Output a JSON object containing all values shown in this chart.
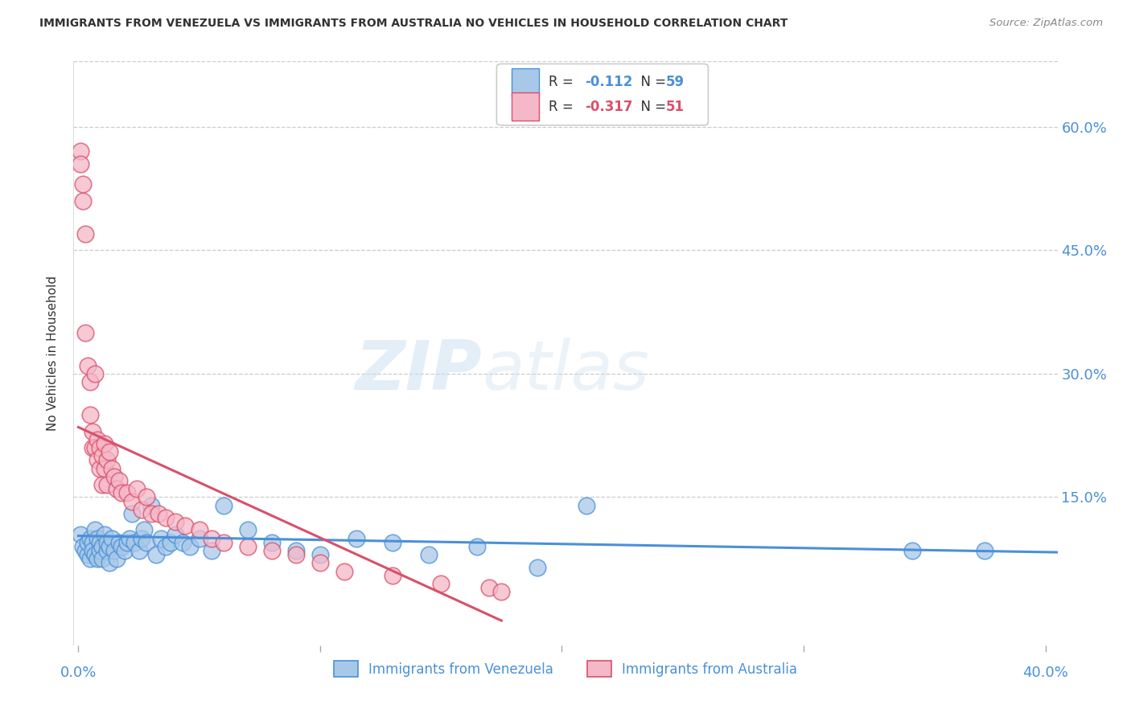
{
  "title": "IMMIGRANTS FROM VENEZUELA VS IMMIGRANTS FROM AUSTRALIA NO VEHICLES IN HOUSEHOLD CORRELATION CHART",
  "source": "Source: ZipAtlas.com",
  "ylabel": "No Vehicles in Household",
  "yticks_right": [
    "60.0%",
    "45.0%",
    "30.0%",
    "15.0%"
  ],
  "ytick_positions": [
    0.6,
    0.45,
    0.3,
    0.15
  ],
  "xlim": [
    -0.002,
    0.405
  ],
  "ylim": [
    -0.03,
    0.68
  ],
  "watermark_zip": "ZIP",
  "watermark_atlas": "atlas",
  "legend1_r": "-0.112",
  "legend1_n": "59",
  "legend2_r": "-0.317",
  "legend2_n": "51",
  "legend1_color": "#a8c8e8",
  "legend2_color": "#f5b8c8",
  "line1_color": "#4a90d9",
  "line2_color": "#d9506a",
  "scatter1_color": "#a8c8e8",
  "scatter2_color": "#f5b8c8",
  "bottom_legend1": "Immigrants from Venezuela",
  "bottom_legend2": "Immigrants from Australia",
  "venezuela_x": [
    0.001,
    0.002,
    0.003,
    0.004,
    0.004,
    0.005,
    0.005,
    0.006,
    0.006,
    0.007,
    0.007,
    0.008,
    0.008,
    0.009,
    0.009,
    0.01,
    0.01,
    0.011,
    0.012,
    0.012,
    0.013,
    0.013,
    0.014,
    0.015,
    0.016,
    0.017,
    0.018,
    0.019,
    0.02,
    0.021,
    0.022,
    0.023,
    0.025,
    0.026,
    0.027,
    0.028,
    0.03,
    0.032,
    0.034,
    0.036,
    0.038,
    0.04,
    0.043,
    0.046,
    0.05,
    0.055,
    0.06,
    0.07,
    0.08,
    0.09,
    0.1,
    0.115,
    0.13,
    0.145,
    0.165,
    0.19,
    0.21,
    0.345,
    0.375
  ],
  "venezuela_y": [
    0.105,
    0.09,
    0.085,
    0.08,
    0.095,
    0.075,
    0.1,
    0.095,
    0.085,
    0.11,
    0.08,
    0.1,
    0.075,
    0.095,
    0.085,
    0.09,
    0.075,
    0.105,
    0.085,
    0.095,
    0.07,
    0.09,
    0.1,
    0.085,
    0.075,
    0.095,
    0.09,
    0.085,
    0.095,
    0.1,
    0.13,
    0.095,
    0.085,
    0.1,
    0.11,
    0.095,
    0.14,
    0.08,
    0.1,
    0.09,
    0.095,
    0.105,
    0.095,
    0.09,
    0.1,
    0.085,
    0.14,
    0.11,
    0.095,
    0.085,
    0.08,
    0.1,
    0.095,
    0.08,
    0.09,
    0.065,
    0.14,
    0.085,
    0.085
  ],
  "australia_x": [
    0.001,
    0.001,
    0.002,
    0.002,
    0.003,
    0.003,
    0.004,
    0.005,
    0.005,
    0.006,
    0.006,
    0.007,
    0.007,
    0.008,
    0.008,
    0.009,
    0.009,
    0.01,
    0.01,
    0.011,
    0.011,
    0.012,
    0.012,
    0.013,
    0.014,
    0.015,
    0.016,
    0.017,
    0.018,
    0.02,
    0.022,
    0.024,
    0.026,
    0.028,
    0.03,
    0.033,
    0.036,
    0.04,
    0.044,
    0.05,
    0.055,
    0.06,
    0.07,
    0.08,
    0.09,
    0.1,
    0.11,
    0.13,
    0.15,
    0.17,
    0.175
  ],
  "australia_y": [
    0.57,
    0.555,
    0.53,
    0.51,
    0.47,
    0.35,
    0.31,
    0.29,
    0.25,
    0.23,
    0.21,
    0.3,
    0.21,
    0.22,
    0.195,
    0.21,
    0.185,
    0.2,
    0.165,
    0.215,
    0.185,
    0.195,
    0.165,
    0.205,
    0.185,
    0.175,
    0.16,
    0.17,
    0.155,
    0.155,
    0.145,
    0.16,
    0.135,
    0.15,
    0.13,
    0.13,
    0.125,
    0.12,
    0.115,
    0.11,
    0.1,
    0.095,
    0.09,
    0.085,
    0.08,
    0.07,
    0.06,
    0.055,
    0.045,
    0.04,
    0.035
  ],
  "ven_line_x": [
    0.0,
    0.405
  ],
  "ven_line_y": [
    0.103,
    0.083
  ],
  "aus_line_x": [
    0.0,
    0.175
  ],
  "aus_line_y": [
    0.235,
    0.0
  ]
}
